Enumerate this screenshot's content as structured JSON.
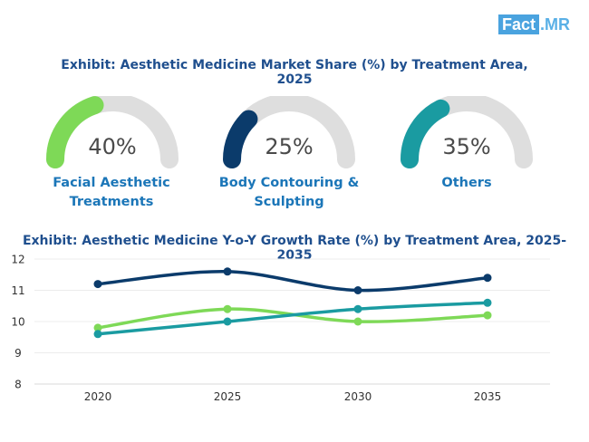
{
  "logo": {
    "box_text": "Fact",
    "rest_text": ".MR"
  },
  "chart_data": [
    {
      "type": "gauge",
      "title": "Exhibit: Aesthetic Medicine Market Share (%) by Treatment Area, 2025",
      "items": [
        {
          "label": "Facial Aesthetic Treatments",
          "value": 40,
          "display": "40%",
          "color": "#7ed957"
        },
        {
          "label": "Body Contouring & Sculpting",
          "value": 25,
          "display": "25%",
          "color": "#0b3b6b"
        },
        {
          "label": "Others",
          "value": 35,
          "display": "35%",
          "color": "#1a9ba1"
        }
      ],
      "track_color": "#dedede"
    },
    {
      "type": "line",
      "title": "Exhibit: Aesthetic Medicine Y-o-Y Growth Rate (%) by Treatment Area, 2025-2035",
      "x": [
        "2020",
        "2025",
        "2030",
        "2035"
      ],
      "series": [
        {
          "name": "Body Contouring & Sculpting",
          "values": [
            11.2,
            11.6,
            11.0,
            11.4
          ],
          "color": "#0b3b6b"
        },
        {
          "name": "Facial Aesthetic Treatments",
          "values": [
            9.8,
            10.4,
            10.0,
            10.2
          ],
          "color": "#7ed957"
        },
        {
          "name": "Others",
          "values": [
            9.6,
            10.0,
            10.4,
            10.6
          ],
          "color": "#1a9ba1"
        }
      ],
      "ylim": [
        8,
        12
      ],
      "yticks": [
        "8",
        "9",
        "10",
        "11",
        "12"
      ],
      "grid": true,
      "legend": "none"
    }
  ]
}
